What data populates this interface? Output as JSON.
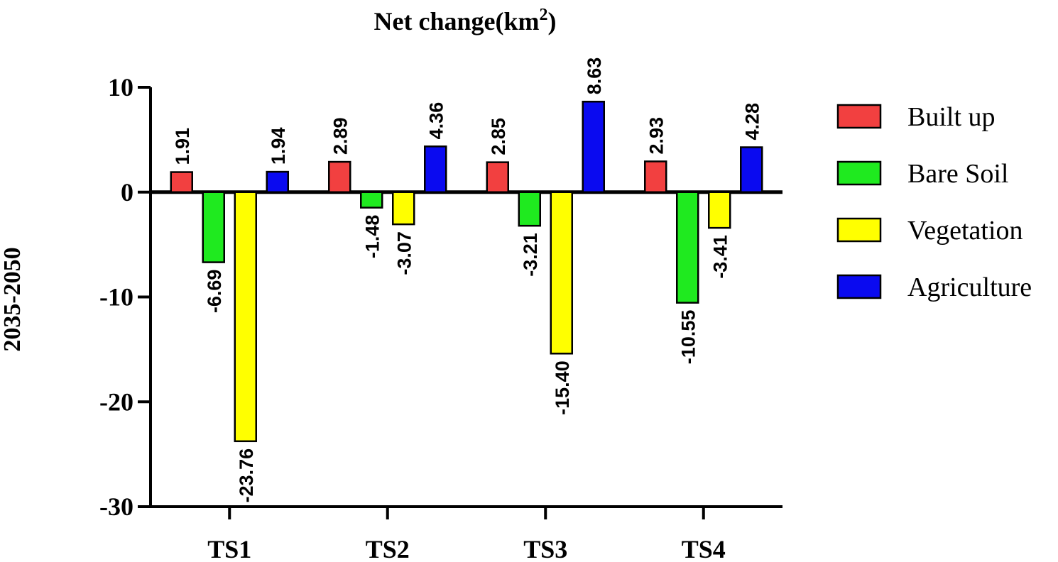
{
  "chart_data": {
    "type": "bar",
    "title": "Net change(km",
    "title_superscript": "2",
    "title_suffix": ")",
    "xlabel": "",
    "ylabel": "2035-2050",
    "ylim": [
      -30,
      10
    ],
    "yticks": [
      "10",
      "0",
      "-10",
      "-20",
      "-30"
    ],
    "ytick_values": [
      10,
      0,
      -10,
      -20,
      -30
    ],
    "categories": [
      "TS1",
      "TS2",
      "TS3",
      "TS4"
    ],
    "series": [
      {
        "name": "Built up",
        "color": "#f24040",
        "values": [
          1.91,
          2.89,
          2.85,
          2.93
        ],
        "labels": [
          "1.91",
          "2.89",
          "2.85",
          "2.93"
        ]
      },
      {
        "name": "Bare Soil",
        "color": "#1fea1f",
        "values": [
          -6.69,
          -1.48,
          -3.21,
          -10.55
        ],
        "labels": [
          "-6.69",
          "-1.48",
          "-3.21",
          "-10.55"
        ]
      },
      {
        "name": "Vegetation",
        "color": "#ffff00",
        "values": [
          -23.76,
          -3.07,
          -15.4,
          -3.41
        ],
        "labels": [
          "-23.76",
          "-3.07",
          "-15.40",
          "-3.41"
        ]
      },
      {
        "name": "Agriculture",
        "color": "#0a0af0",
        "values": [
          1.94,
          4.36,
          8.63,
          4.28
        ],
        "labels": [
          "1.94",
          "4.36",
          "8.63",
          "4.28"
        ]
      }
    ],
    "legend": "right"
  }
}
